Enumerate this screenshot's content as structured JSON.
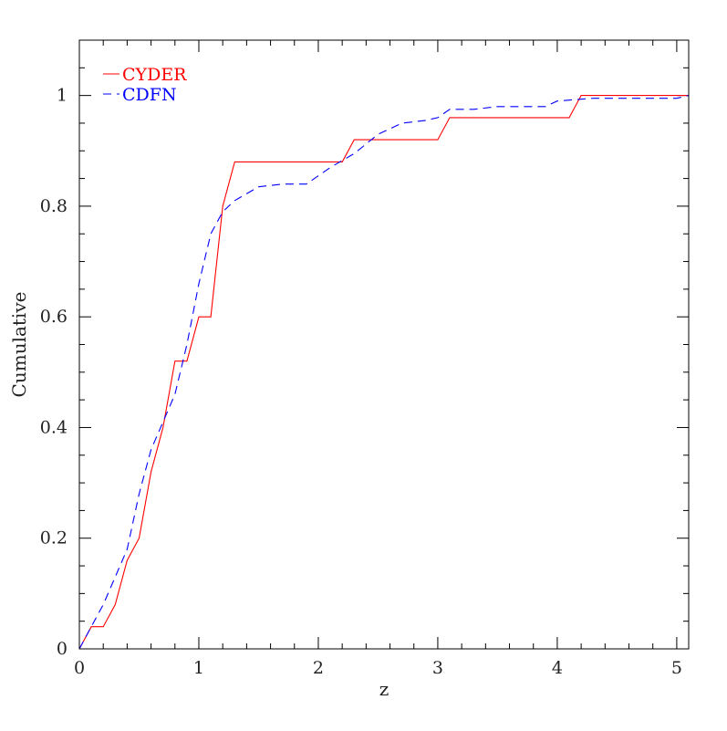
{
  "chart_data": {
    "type": "line",
    "xlabel": "z",
    "ylabel": "Cumulative",
    "xlim": [
      0,
      5.1
    ],
    "ylim": [
      0,
      1.1
    ],
    "x_ticks": [
      0,
      1,
      2,
      3,
      4,
      5
    ],
    "x_tick_labels": [
      "0",
      "1",
      "2",
      "3",
      "4",
      "5"
    ],
    "y_ticks": [
      0,
      0.2,
      0.4,
      0.6,
      0.8,
      1
    ],
    "y_tick_labels": [
      "0",
      "0.2",
      "0.4",
      "0.6",
      "0.8",
      "1"
    ],
    "x_minor_step": 0.2,
    "y_minor_step": 0.05,
    "grid": false,
    "legend_position": "top-left",
    "series": [
      {
        "name": "CYDER",
        "color": "#ff0000",
        "style": "solid",
        "points": [
          [
            0.0,
            0.0
          ],
          [
            0.1,
            0.04
          ],
          [
            0.2,
            0.04
          ],
          [
            0.3,
            0.08
          ],
          [
            0.4,
            0.16
          ],
          [
            0.5,
            0.2
          ],
          [
            0.6,
            0.32
          ],
          [
            0.7,
            0.4
          ],
          [
            0.8,
            0.52
          ],
          [
            0.9,
            0.52
          ],
          [
            1.0,
            0.6
          ],
          [
            1.1,
            0.6
          ],
          [
            1.2,
            0.8
          ],
          [
            1.3,
            0.88
          ],
          [
            2.2,
            0.88
          ],
          [
            2.3,
            0.92
          ],
          [
            3.0,
            0.92
          ],
          [
            3.1,
            0.96
          ],
          [
            4.1,
            0.96
          ],
          [
            4.2,
            1.0
          ],
          [
            5.1,
            1.0
          ]
        ]
      },
      {
        "name": "CDFN",
        "color": "#0000ff",
        "style": "dashed",
        "points": [
          [
            0.0,
            0.0
          ],
          [
            0.1,
            0.04
          ],
          [
            0.2,
            0.08
          ],
          [
            0.3,
            0.13
          ],
          [
            0.4,
            0.18
          ],
          [
            0.5,
            0.28
          ],
          [
            0.6,
            0.36
          ],
          [
            0.7,
            0.41
          ],
          [
            0.8,
            0.46
          ],
          [
            0.9,
            0.55
          ],
          [
            1.0,
            0.66
          ],
          [
            1.1,
            0.75
          ],
          [
            1.2,
            0.79
          ],
          [
            1.3,
            0.81
          ],
          [
            1.5,
            0.835
          ],
          [
            1.7,
            0.84
          ],
          [
            1.9,
            0.84
          ],
          [
            2.1,
            0.87
          ],
          [
            2.3,
            0.895
          ],
          [
            2.5,
            0.93
          ],
          [
            2.7,
            0.95
          ],
          [
            2.9,
            0.955
          ],
          [
            3.0,
            0.96
          ],
          [
            3.1,
            0.975
          ],
          [
            3.3,
            0.975
          ],
          [
            3.5,
            0.98
          ],
          [
            3.9,
            0.98
          ],
          [
            4.0,
            0.99
          ],
          [
            4.3,
            0.995
          ],
          [
            5.0,
            0.995
          ],
          [
            5.1,
            1.0
          ]
        ]
      }
    ]
  }
}
